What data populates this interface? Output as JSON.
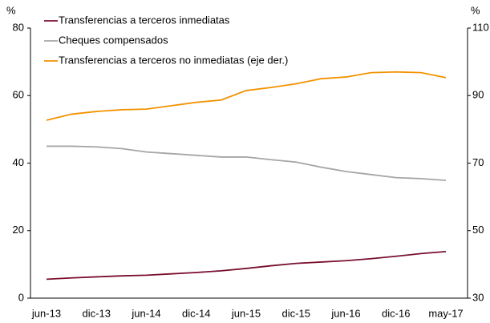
{
  "chart_data": {
    "type": "line",
    "categories": [
      "jun-13",
      null,
      "dic-13",
      null,
      "jun-14",
      null,
      "dic-14",
      null,
      "jun-15",
      null,
      "dic-15",
      null,
      "jun-16",
      null,
      "dic-16",
      null,
      "may-17"
    ],
    "y_unit": "%",
    "y2_unit": "%",
    "ylim": [
      0,
      80
    ],
    "yticks": [
      0,
      20,
      40,
      60,
      80
    ],
    "y2lim": [
      30,
      110
    ],
    "y2ticks": [
      30,
      50,
      70,
      90,
      110
    ],
    "legend": "upper left",
    "series": [
      {
        "name": "Transferencias a terceros inmediatas",
        "color": "#7a0f2e",
        "values": [
          5.6,
          6,
          6.3,
          6.6,
          6.8,
          7.2,
          7.6,
          8.1,
          8.8,
          9.6,
          10.3,
          10.7,
          11.1,
          11.7,
          12.4,
          13.2,
          13.8
        ]
      },
      {
        "name": "Cheques compensados",
        "color": "#a6a6a6",
        "values": [
          45,
          45,
          44.8,
          44.3,
          43.3,
          42.8,
          42.3,
          41.8,
          41.8,
          41,
          40.3,
          38.8,
          37.5,
          36.6,
          35.7,
          35.4,
          34.9
        ]
      },
      {
        "name": "Transferencias a terceros no inmediatas (eje der.)",
        "color": "#f39200",
        "axis": "y2",
        "values": [
          82.7,
          84.5,
          85.3,
          85.8,
          86,
          87,
          88,
          88.7,
          91.5,
          92.4,
          93.5,
          95,
          95.5,
          96.8,
          97,
          96.8,
          95.3
        ]
      }
    ]
  }
}
